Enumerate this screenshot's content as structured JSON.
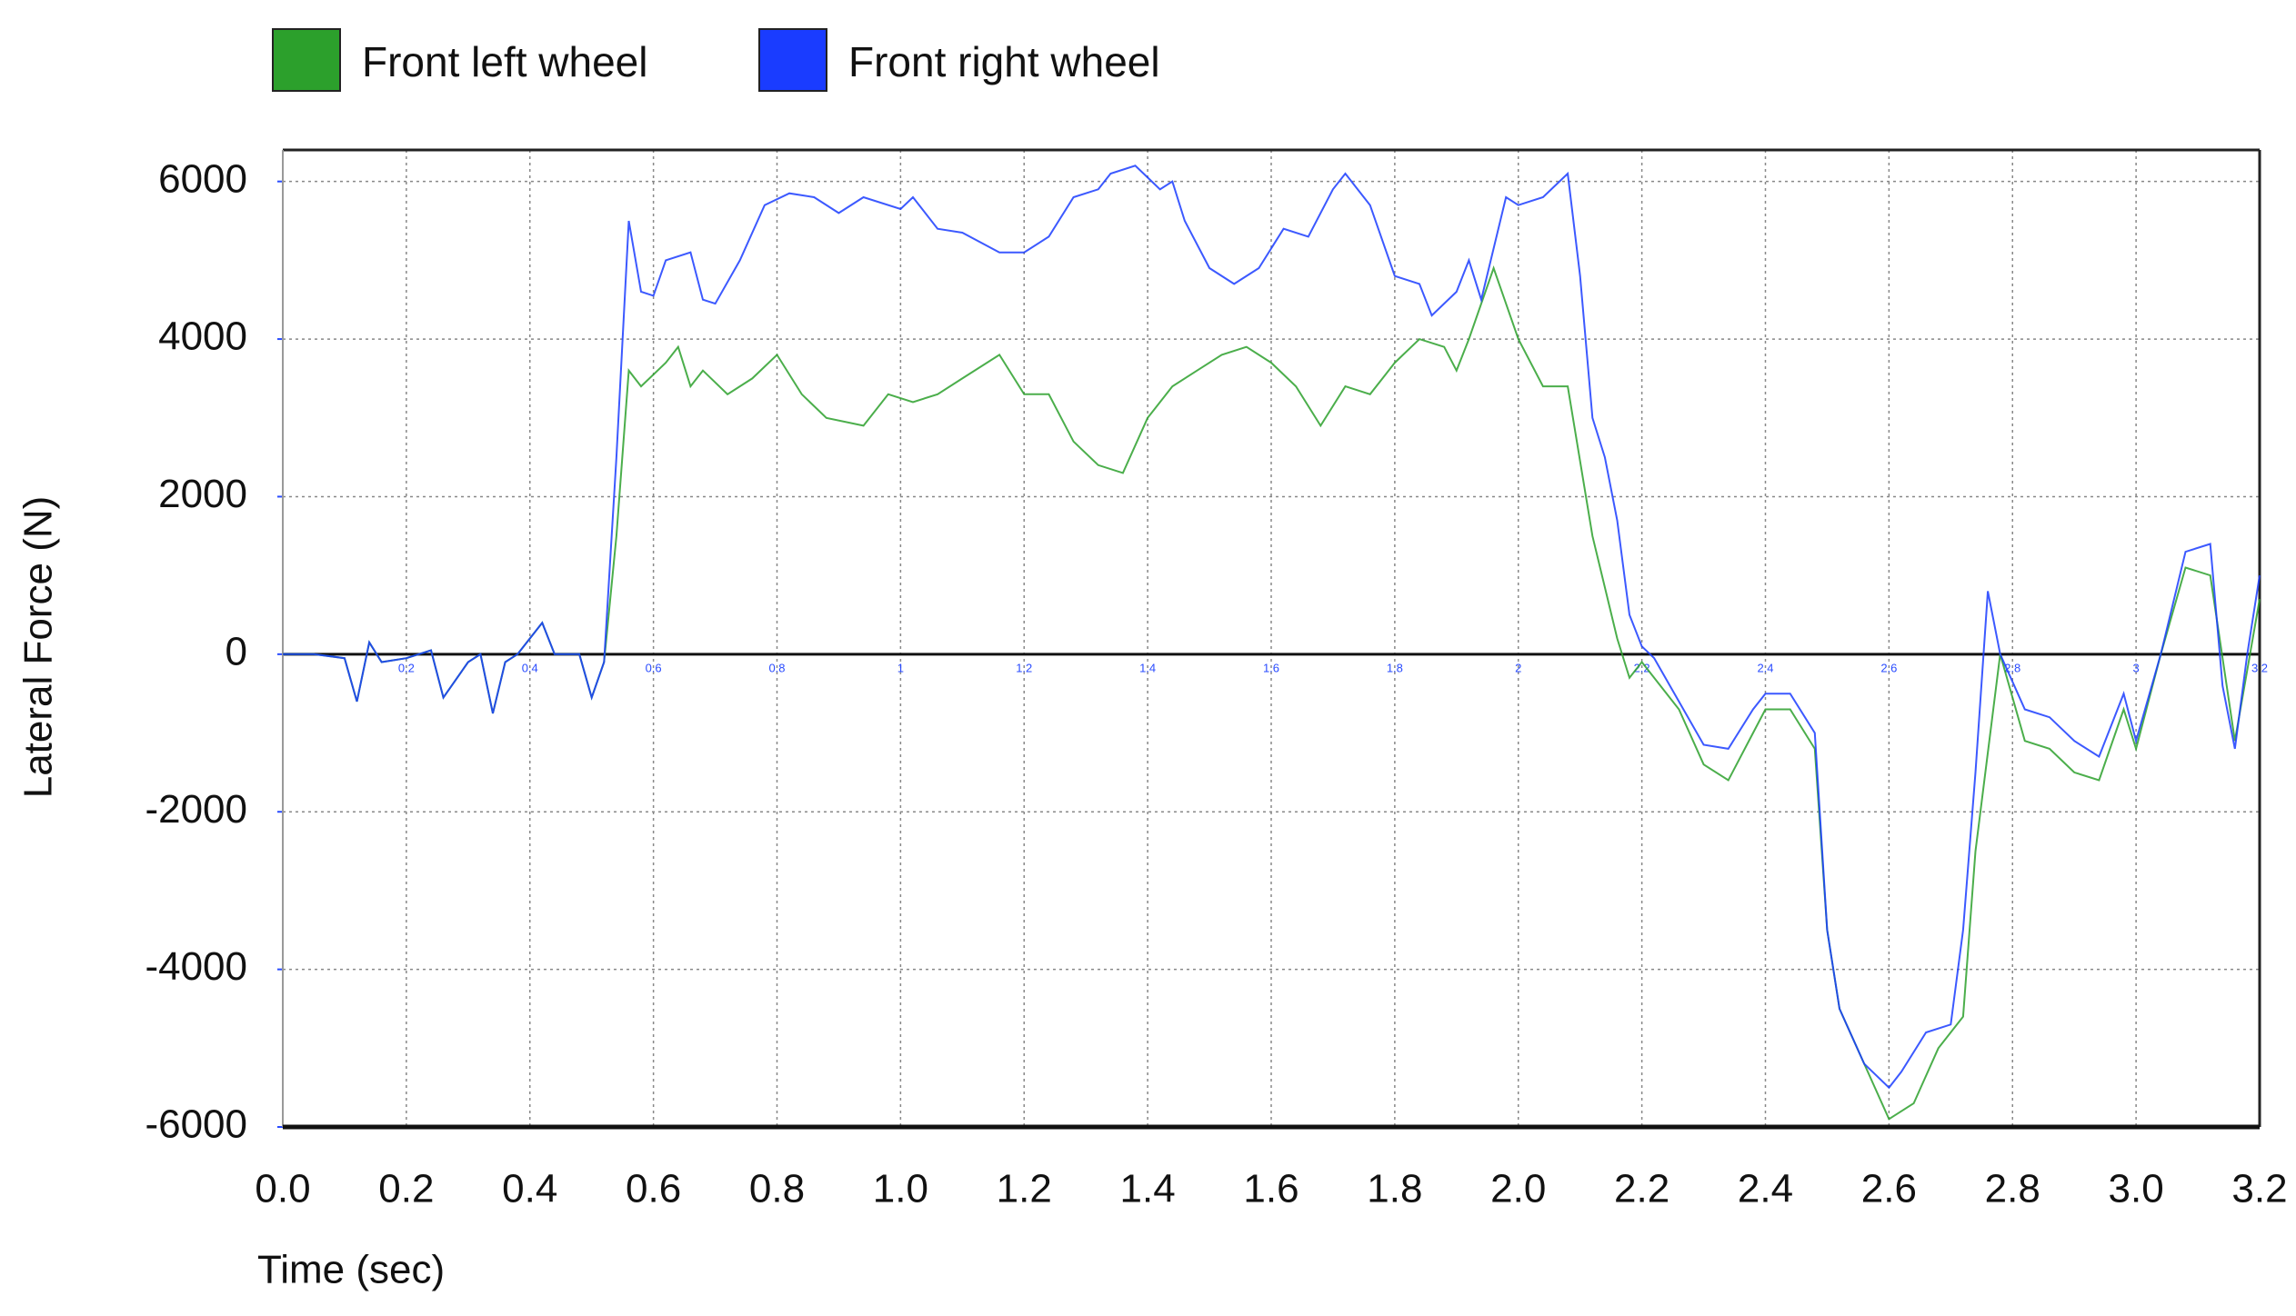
{
  "chart_data": {
    "type": "line",
    "xlabel": "Time (sec)",
    "ylabel": "Lateral Force (N)",
    "xlim": [
      0,
      3.2
    ],
    "ylim": [
      -6000,
      6400
    ],
    "xticks": [
      {
        "value": 0,
        "label": "0.0"
      },
      0.2,
      0.4,
      0.6,
      0.8,
      {
        "value": 1,
        "label": "1.0"
      },
      1.2,
      1.4,
      1.6,
      1.8,
      {
        "value": 2,
        "label": "2.0"
      },
      2.2,
      2.4,
      2.6,
      2.8,
      {
        "value": 3,
        "label": "3.0"
      },
      3.2
    ],
    "minor_xticks": [
      0.2,
      0.4,
      0.6,
      0.8,
      1,
      1.2,
      1.4,
      1.6,
      1.8,
      2,
      2.2,
      2.4,
      2.6,
      2.8,
      3,
      3.2
    ],
    "yticks": [
      6000,
      4000,
      2000,
      0,
      -2000,
      -4000,
      -6000
    ],
    "grid": true,
    "legend": "top-left",
    "series": [
      {
        "name": "Front left wheel",
        "color": "#2ca02c",
        "x": [
          0,
          0.05,
          0.1,
          0.12,
          0.14,
          0.16,
          0.2,
          0.24,
          0.26,
          0.3,
          0.32,
          0.34,
          0.36,
          0.38,
          0.42,
          0.44,
          0.48,
          0.5,
          0.52,
          0.54,
          0.56,
          0.58,
          0.62,
          0.64,
          0.66,
          0.68,
          0.72,
          0.76,
          0.8,
          0.84,
          0.88,
          0.94,
          0.98,
          1.02,
          1.06,
          1.1,
          1.16,
          1.2,
          1.24,
          1.28,
          1.32,
          1.36,
          1.4,
          1.44,
          1.48,
          1.52,
          1.56,
          1.6,
          1.64,
          1.68,
          1.72,
          1.76,
          1.8,
          1.84,
          1.88,
          1.9,
          1.92,
          1.96,
          2.0,
          2.04,
          2.08,
          2.12,
          2.16,
          2.18,
          2.2,
          2.26,
          2.3,
          2.34,
          2.38,
          2.4,
          2.44,
          2.48,
          2.5,
          2.52,
          2.56,
          2.6,
          2.64,
          2.68,
          2.72,
          2.74,
          2.78,
          2.82,
          2.86,
          2.9,
          2.94,
          2.98,
          3.0,
          3.04,
          3.08,
          3.12,
          3.16,
          3.2
        ],
        "values": [
          0,
          0,
          -50,
          -600,
          150,
          -100,
          -50,
          50,
          -550,
          -100,
          0,
          -750,
          -100,
          0,
          400,
          0,
          0,
          -550,
          -100,
          1500,
          3600,
          3400,
          3700,
          3900,
          3400,
          3600,
          3300,
          3500,
          3800,
          3300,
          3000,
          2900,
          3300,
          3200,
          3300,
          3500,
          3800,
          3300,
          3300,
          2700,
          2400,
          2300,
          3000,
          3400,
          3600,
          3800,
          3900,
          3700,
          3400,
          2900,
          3400,
          3300,
          3700,
          4000,
          3900,
          3600,
          4000,
          4900,
          4000,
          3400,
          3400,
          1500,
          200,
          -300,
          -100,
          -700,
          -1400,
          -1600,
          -1000,
          -700,
          -700,
          -1200,
          -3500,
          -4500,
          -5200,
          -5900,
          -5700,
          -5000,
          -4600,
          -2500,
          0,
          -1100,
          -1200,
          -1500,
          -1600,
          -700,
          -1200,
          0,
          1100,
          1000,
          -1100,
          700
        ]
      },
      {
        "name": "Front right wheel",
        "color": "#1a3cff",
        "x": [
          0,
          0.05,
          0.1,
          0.12,
          0.14,
          0.16,
          0.2,
          0.24,
          0.26,
          0.3,
          0.32,
          0.34,
          0.36,
          0.38,
          0.42,
          0.44,
          0.48,
          0.5,
          0.52,
          0.54,
          0.56,
          0.58,
          0.6,
          0.62,
          0.66,
          0.68,
          0.7,
          0.74,
          0.78,
          0.82,
          0.86,
          0.9,
          0.94,
          1.0,
          1.02,
          1.06,
          1.1,
          1.16,
          1.2,
          1.24,
          1.28,
          1.32,
          1.34,
          1.38,
          1.42,
          1.44,
          1.46,
          1.5,
          1.54,
          1.58,
          1.62,
          1.66,
          1.7,
          1.72,
          1.76,
          1.8,
          1.84,
          1.86,
          1.9,
          1.92,
          1.94,
          1.98,
          2.0,
          2.04,
          2.08,
          2.1,
          2.12,
          2.14,
          2.16,
          2.18,
          2.2,
          2.22,
          2.26,
          2.3,
          2.34,
          2.38,
          2.4,
          2.44,
          2.48,
          2.5,
          2.52,
          2.56,
          2.6,
          2.62,
          2.66,
          2.7,
          2.72,
          2.74,
          2.76,
          2.78,
          2.82,
          2.86,
          2.9,
          2.94,
          2.98,
          3.0,
          3.04,
          3.08,
          3.12,
          3.14,
          3.16,
          3.18,
          3.2
        ],
        "values": [
          0,
          0,
          -50,
          -600,
          150,
          -100,
          -50,
          50,
          -550,
          -100,
          0,
          -750,
          -100,
          0,
          400,
          0,
          0,
          -550,
          -100,
          2500,
          5500,
          4600,
          4550,
          5000,
          5100,
          4500,
          4450,
          5000,
          5700,
          5850,
          5800,
          5600,
          5800,
          5650,
          5800,
          5400,
          5350,
          5100,
          5100,
          5300,
          5800,
          5900,
          6100,
          6200,
          5900,
          6000,
          5500,
          4900,
          4700,
          4900,
          5400,
          5300,
          5900,
          6100,
          5700,
          4800,
          4700,
          4300,
          4600,
          5000,
          4500,
          5800,
          5700,
          5800,
          6100,
          4800,
          3000,
          2500,
          1700,
          500,
          100,
          -50,
          -600,
          -1150,
          -1200,
          -700,
          -500,
          -500,
          -1000,
          -3500,
          -4500,
          -5200,
          -5500,
          -5300,
          -4800,
          -4700,
          -3500,
          -1500,
          800,
          0,
          -700,
          -800,
          -1100,
          -1300,
          -500,
          -1100,
          0,
          1300,
          1400,
          -400,
          -1200,
          0,
          1000
        ]
      }
    ]
  }
}
